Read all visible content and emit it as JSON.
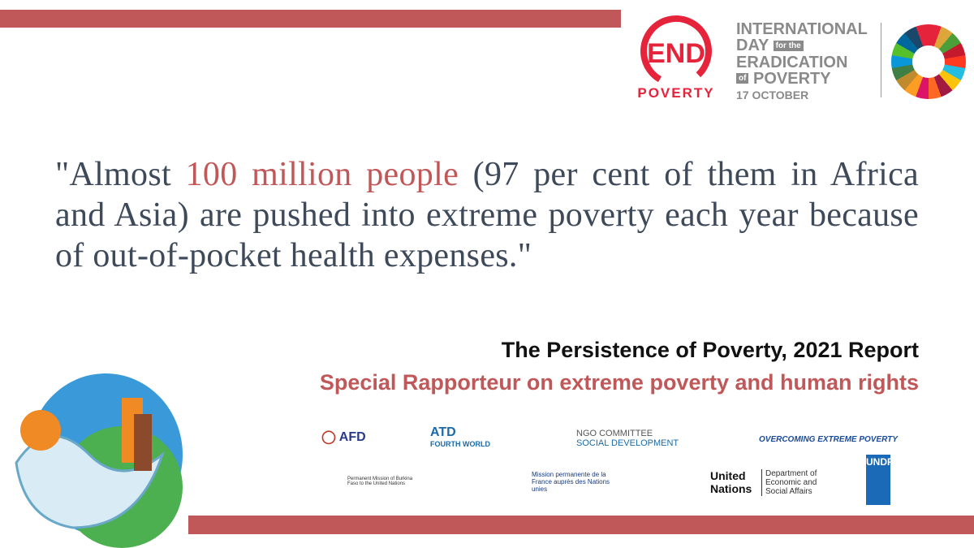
{
  "header": {
    "end_logo": {
      "top": "END",
      "bottom": "POVERTY"
    },
    "day": {
      "line1": "INTERNATIONAL",
      "line2a": "DAY",
      "line2b": "for the",
      "line3": "ERADICATION",
      "line4a": "of",
      "line4b": "POVERTY",
      "date": "17 OCTOBER"
    }
  },
  "quote": {
    "before": "\"Almost ",
    "highlight": "100 million people",
    "after": " (97 per cent of them in Africa and Asia) are pushed into extreme poverty each year because of out-of-pocket health expenses.\""
  },
  "source": {
    "title": "The Persistence of Poverty, 2021 Report",
    "author": "Special Rapporteur on extreme poverty and human rights"
  },
  "partners": [
    "AFD",
    "ATD",
    "FOURTH WORLD",
    "NGO COMMITTEE",
    "SOCIAL DEVELOPMENT",
    "OVERCOMING EXTREME POVERTY",
    "Permanent Mission of Burkina Faso to the United Nations",
    "Mission permanente de la France auprès des Nations unies",
    "United Nations",
    "Department of Economic and Social Affairs",
    "UNDP"
  ]
}
